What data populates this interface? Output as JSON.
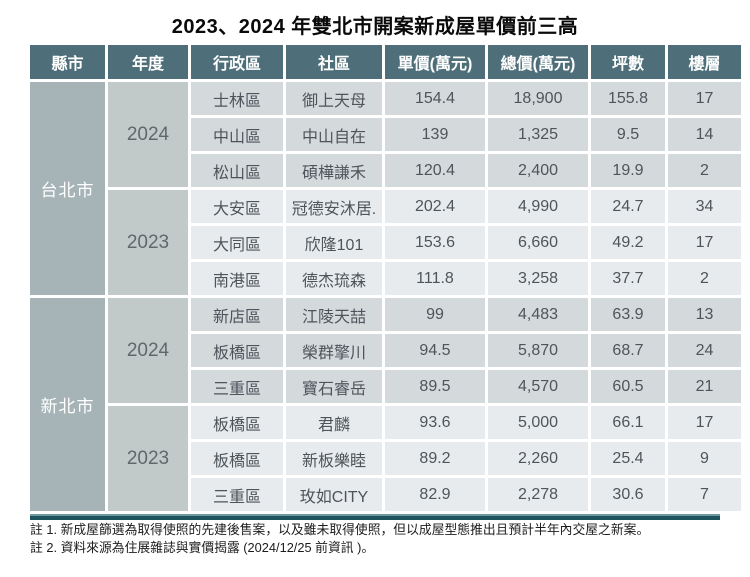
{
  "title": "2023、2024 年雙北市開案新成屋單價前三高",
  "table": {
    "headers": [
      "縣市",
      "年度",
      "行政區",
      "社區",
      "單價(萬元)",
      "總價(萬元)",
      "坪數",
      "樓層"
    ],
    "groups": [
      {
        "city": "台北市",
        "years": [
          {
            "year": "2024",
            "rows": [
              [
                "士林區",
                "御上天母",
                "154.4",
                "18,900",
                "155.8",
                "17"
              ],
              [
                "中山區",
                "中山自在",
                "139",
                "1,325",
                "9.5",
                "14"
              ],
              [
                "松山區",
                "碩樺謙禾",
                "120.4",
                "2,400",
                "19.9",
                "2"
              ]
            ]
          },
          {
            "year": "2023",
            "rows": [
              [
                "大安區",
                "冠德安沐居.",
                "202.4",
                "4,990",
                "24.7",
                "34"
              ],
              [
                "大同區",
                "欣隆101",
                "153.6",
                "6,660",
                "49.2",
                "17"
              ],
              [
                "南港區",
                "德杰琉森",
                "111.8",
                "3,258",
                "37.7",
                "2"
              ]
            ]
          }
        ]
      },
      {
        "city": "新北市",
        "years": [
          {
            "year": "2024",
            "rows": [
              [
                "新店區",
                "江陵天喆",
                "99",
                "4,483",
                "63.9",
                "13"
              ],
              [
                "板橋區",
                "榮群擎川",
                "94.5",
                "5,870",
                "68.7",
                "24"
              ],
              [
                "三重區",
                "寶石睿岳",
                "89.5",
                "4,570",
                "60.5",
                "21"
              ]
            ]
          },
          {
            "year": "2023",
            "rows": [
              [
                "板橋區",
                "君麟",
                "93.6",
                "5,000",
                "66.1",
                "17"
              ],
              [
                "板橋區",
                "新板樂睦",
                "89.2",
                "2,260",
                "25.4",
                "9"
              ],
              [
                "三重區",
                "玫如CITY",
                "82.9",
                "2,278",
                "30.6",
                "7"
              ]
            ]
          }
        ]
      }
    ]
  },
  "notes": [
    "註 1. 新成屋篩選為取得使照的先建後售案，以及雖未取得使照，但以成屋型態推出且預計半年內交屋之新案。",
    "註 2. 資料來源為住展雜誌與實價揭露 (2024/12/25 前資訊 )。"
  ],
  "colors": {
    "header_bg": "#4e6f79",
    "city_cell_bg": "#a6b4b8",
    "year_cell_bg": "#c1cac8",
    "row_2024_bg": "#d4d9dc",
    "row_2023_bg": "#e8ebed",
    "bottom_bar": "#1d535d",
    "cell_text": "#4d555b"
  },
  "chart_data": {
    "type": "table",
    "title": "2023、2024 年雙北市開案新成屋單價前三高",
    "columns": [
      "縣市",
      "年度",
      "行政區",
      "社區",
      "單價(萬元)",
      "總價(萬元)",
      "坪數",
      "樓層"
    ],
    "rows": [
      [
        "台北市",
        2024,
        "士林區",
        "御上天母",
        154.4,
        18900,
        155.8,
        17
      ],
      [
        "台北市",
        2024,
        "中山區",
        "中山自在",
        139,
        1325,
        9.5,
        14
      ],
      [
        "台北市",
        2024,
        "松山區",
        "碩樺謙禾",
        120.4,
        2400,
        19.9,
        2
      ],
      [
        "台北市",
        2023,
        "大安區",
        "冠德安沐居.",
        202.4,
        4990,
        24.7,
        34
      ],
      [
        "台北市",
        2023,
        "大同區",
        "欣隆101",
        153.6,
        6660,
        49.2,
        17
      ],
      [
        "台北市",
        2023,
        "南港區",
        "德杰琉森",
        111.8,
        3258,
        37.7,
        2
      ],
      [
        "新北市",
        2024,
        "新店區",
        "江陵天喆",
        99,
        4483,
        63.9,
        13
      ],
      [
        "新北市",
        2024,
        "板橋區",
        "榮群擎川",
        94.5,
        5870,
        68.7,
        24
      ],
      [
        "新北市",
        2024,
        "三重區",
        "寶石睿岳",
        89.5,
        4570,
        60.5,
        21
      ],
      [
        "新北市",
        2023,
        "板橋區",
        "君麟",
        93.6,
        5000,
        66.1,
        17
      ],
      [
        "新北市",
        2023,
        "板橋區",
        "新板樂睦",
        89.2,
        2260,
        25.4,
        9
      ],
      [
        "新北市",
        2023,
        "三重區",
        "玫如CITY",
        82.9,
        2278,
        30.6,
        7
      ]
    ],
    "notes": [
      "註 1. 新成屋篩選為取得使照的先建後售案，以及雖未取得使照，但以成屋型態推出且預計半年內交屋之新案。",
      "註 2. 資料來源為住展雜誌與實價揭露 (2024/12/25 前資訊 )。"
    ]
  }
}
